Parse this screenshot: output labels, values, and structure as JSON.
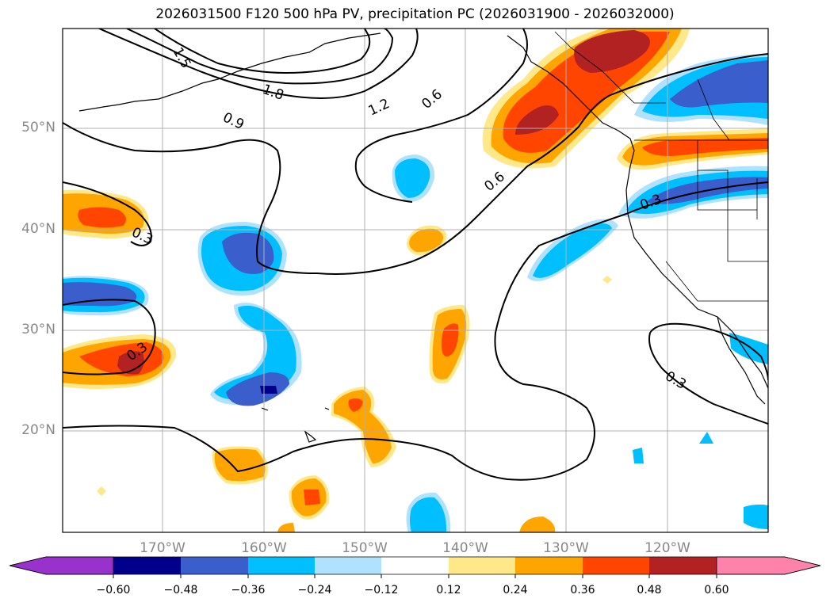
{
  "title": "2026031500 F120 500 hPa PV, precipitation PC (2026031900 - 2026032000)",
  "map": {
    "lon_range": [
      -180,
      -110
    ],
    "lat_range": [
      10,
      60
    ],
    "lat_ticks": [
      "50°N",
      "40°N",
      "30°N",
      "20°N"
    ],
    "lon_ticks": [
      "170°W",
      "160°W",
      "150°W",
      "140°W",
      "130°W",
      "120°W"
    ],
    "contour_labels": [
      "1.5",
      "1.8",
      "0.9",
      "1.2",
      "0.6",
      "0.6",
      "0.3",
      "0.3",
      "0.3",
      "0.3"
    ]
  },
  "colorbar": {
    "ticks": [
      "−0.60",
      "−0.48",
      "−0.36",
      "−0.24",
      "−0.12",
      "0.12",
      "0.24",
      "0.36",
      "0.48",
      "0.60"
    ],
    "colors": [
      "#9932cc",
      "#00008b",
      "#3a5fcd",
      "#00bfff",
      "#b0e2ff",
      "#ffffff",
      "#ffe88a",
      "#ffa500",
      "#ff4500",
      "#b22222",
      "#ff82ab"
    ]
  }
}
